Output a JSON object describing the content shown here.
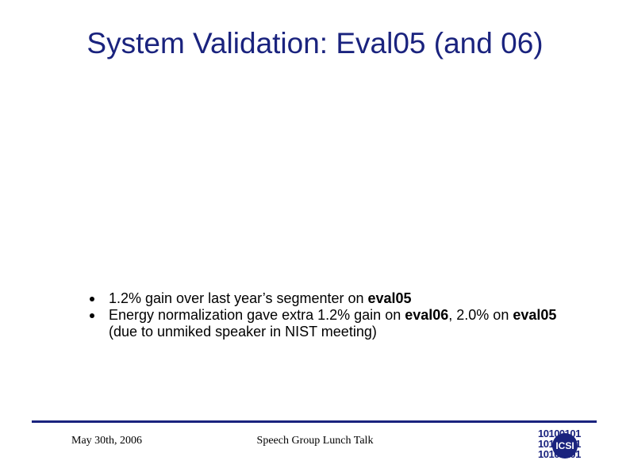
{
  "slide": {
    "title": "System Validation: Eval05 (and 06)",
    "bullets": [
      {
        "pre": "1.2% gain over last year’s segmenter on ",
        "bold1": "eval05",
        "mid": "",
        "bold2": "",
        "post": ""
      },
      {
        "pre": "Energy normalization gave extra 1.2% gain on ",
        "bold1": "eval06",
        "mid": ", 2.0% on ",
        "bold2": "eval05",
        "post": " (due to unmiked speaker in NIST meeting)"
      }
    ]
  },
  "footer": {
    "date": "May 30th, 2006",
    "talk": "Speech Group Lunch Talk"
  },
  "logo": {
    "name": "ICSI",
    "bits": [
      "10100101",
      "10100101",
      "10100101"
    ]
  },
  "colors": {
    "title": "#1a237e",
    "rule": "#1a237e"
  }
}
